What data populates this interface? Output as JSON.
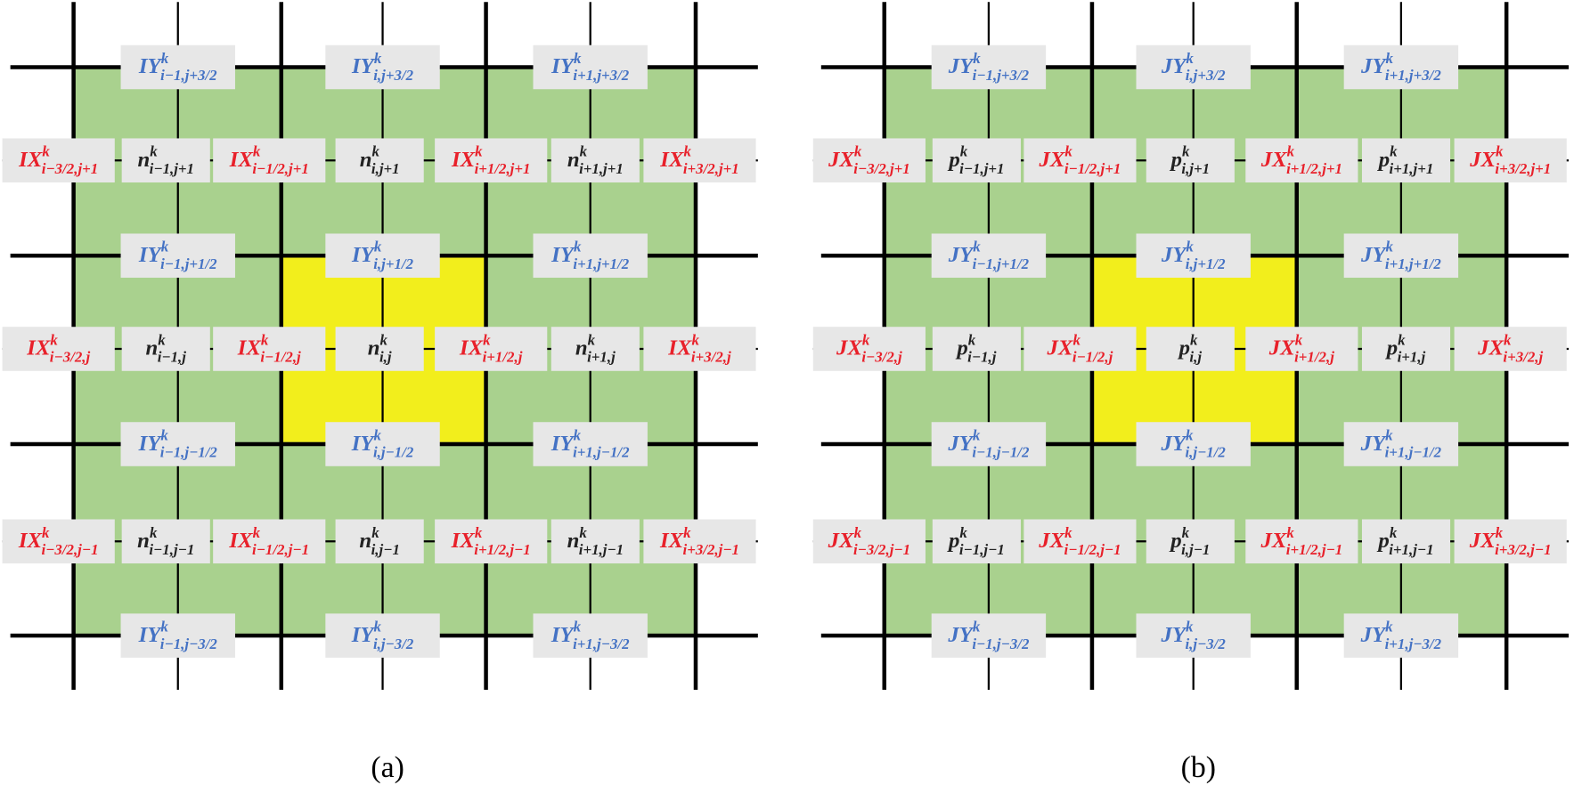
{
  "panels": [
    {
      "caption": "(a)",
      "rows": [
        [
          {
            "base": "IY",
            "sup": "k",
            "sub": "i−1,j+3/2",
            "color": "#4472c4"
          },
          {
            "base": "IY",
            "sup": "k",
            "sub": "i,j+3/2",
            "color": "#4472c4"
          },
          {
            "base": "IY",
            "sup": "k",
            "sub": "i+1,j+3/2",
            "color": "#4472c4"
          }
        ],
        [
          {
            "base": "IX",
            "sup": "k",
            "sub": "i−3/2,j+1",
            "color": "#e8202a"
          },
          {
            "base": "n",
            "sup": "k",
            "sub": "i−1,j+1",
            "color": "#222222"
          },
          {
            "base": "IX",
            "sup": "k",
            "sub": "i−1/2,j+1",
            "color": "#e8202a"
          },
          {
            "base": "n",
            "sup": "k",
            "sub": "i,j+1",
            "color": "#222222"
          },
          {
            "base": "IX",
            "sup": "k",
            "sub": "i+1/2,j+1",
            "color": "#e8202a"
          },
          {
            "base": "n",
            "sup": "k",
            "sub": "i+1,j+1",
            "color": "#222222"
          },
          {
            "base": "IX",
            "sup": "k",
            "sub": "i+3/2,j+1",
            "color": "#e8202a"
          }
        ],
        [
          {
            "base": "IY",
            "sup": "k",
            "sub": "i−1,j+1/2",
            "color": "#4472c4"
          },
          {
            "base": "IY",
            "sup": "k",
            "sub": "i,j+1/2",
            "color": "#4472c4"
          },
          {
            "base": "IY",
            "sup": "k",
            "sub": "i+1,j+1/2",
            "color": "#4472c4"
          }
        ],
        [
          {
            "base": "IX",
            "sup": "k",
            "sub": "i−3/2,j",
            "color": "#e8202a"
          },
          {
            "base": "n",
            "sup": "k",
            "sub": "i−1,j",
            "color": "#222222"
          },
          {
            "base": "IX",
            "sup": "k",
            "sub": "i−1/2,j",
            "color": "#e8202a"
          },
          {
            "base": "n",
            "sup": "k",
            "sub": "i,j",
            "color": "#222222"
          },
          {
            "base": "IX",
            "sup": "k",
            "sub": "i+1/2,j",
            "color": "#e8202a"
          },
          {
            "base": "n",
            "sup": "k",
            "sub": "i+1,j",
            "color": "#222222"
          },
          {
            "base": "IX",
            "sup": "k",
            "sub": "i+3/2,j",
            "color": "#e8202a"
          }
        ],
        [
          {
            "base": "IY",
            "sup": "k",
            "sub": "i−1,j−1/2",
            "color": "#4472c4"
          },
          {
            "base": "IY",
            "sup": "k",
            "sub": "i,j−1/2",
            "color": "#4472c4"
          },
          {
            "base": "IY",
            "sup": "k",
            "sub": "i+1,j−1/2",
            "color": "#4472c4"
          }
        ],
        [
          {
            "base": "IX",
            "sup": "k",
            "sub": "i−3/2,j−1",
            "color": "#e8202a"
          },
          {
            "base": "n",
            "sup": "k",
            "sub": "i−1,j−1",
            "color": "#222222"
          },
          {
            "base": "IX",
            "sup": "k",
            "sub": "i−1/2,j−1",
            "color": "#e8202a"
          },
          {
            "base": "n",
            "sup": "k",
            "sub": "i,j−1",
            "color": "#222222"
          },
          {
            "base": "IX",
            "sup": "k",
            "sub": "i+1/2,j−1",
            "color": "#e8202a"
          },
          {
            "base": "n",
            "sup": "k",
            "sub": "i+1,j−1",
            "color": "#222222"
          },
          {
            "base": "IX",
            "sup": "k",
            "sub": "i+3/2,j−1",
            "color": "#e8202a"
          }
        ],
        [
          {
            "base": "IY",
            "sup": "k",
            "sub": "i−1,j−3/2",
            "color": "#4472c4"
          },
          {
            "base": "IY",
            "sup": "k",
            "sub": "i,j−3/2",
            "color": "#4472c4"
          },
          {
            "base": "IY",
            "sup": "k",
            "sub": "i+1,j−3/2",
            "color": "#4472c4"
          }
        ]
      ]
    },
    {
      "caption": "(b)",
      "rows": [
        [
          {
            "base": "JY",
            "sup": "k",
            "sub": "i−1,j+3/2",
            "color": "#4472c4"
          },
          {
            "base": "JY",
            "sup": "k",
            "sub": "i,j+3/2",
            "color": "#4472c4"
          },
          {
            "base": "JY",
            "sup": "k",
            "sub": "i+1,j+3/2",
            "color": "#4472c4"
          }
        ],
        [
          {
            "base": "JX",
            "sup": "k",
            "sub": "i−3/2,j+1",
            "color": "#e8202a"
          },
          {
            "base": "p",
            "sup": "k",
            "sub": "i−1,j+1",
            "color": "#222222"
          },
          {
            "base": "JX",
            "sup": "k",
            "sub": "i−1/2,j+1",
            "color": "#e8202a"
          },
          {
            "base": "p",
            "sup": "k",
            "sub": "i,j+1",
            "color": "#222222"
          },
          {
            "base": "JX",
            "sup": "k",
            "sub": "i+1/2,j+1",
            "color": "#e8202a"
          },
          {
            "base": "p",
            "sup": "k",
            "sub": "i+1,j+1",
            "color": "#222222"
          },
          {
            "base": "JX",
            "sup": "k",
            "sub": "i+3/2,j+1",
            "color": "#e8202a"
          }
        ],
        [
          {
            "base": "JY",
            "sup": "k",
            "sub": "i−1,j+1/2",
            "color": "#4472c4"
          },
          {
            "base": "JY",
            "sup": "k",
            "sub": "i,j+1/2",
            "color": "#4472c4"
          },
          {
            "base": "JY",
            "sup": "k",
            "sub": "i+1,j+1/2",
            "color": "#4472c4"
          }
        ],
        [
          {
            "base": "JX",
            "sup": "k",
            "sub": "i−3/2,j",
            "color": "#e8202a"
          },
          {
            "base": "p",
            "sup": "k",
            "sub": "i−1,j",
            "color": "#222222"
          },
          {
            "base": "JX",
            "sup": "k",
            "sub": "i−1/2,j",
            "color": "#e8202a"
          },
          {
            "base": "p",
            "sup": "k",
            "sub": "i,j",
            "color": "#222222"
          },
          {
            "base": "JX",
            "sup": "k",
            "sub": "i+1/2,j",
            "color": "#e8202a"
          },
          {
            "base": "p",
            "sup": "k",
            "sub": "i+1,j",
            "color": "#222222"
          },
          {
            "base": "JX",
            "sup": "k",
            "sub": "i+3/2,j",
            "color": "#e8202a"
          }
        ],
        [
          {
            "base": "JY",
            "sup": "k",
            "sub": "i−1,j−1/2",
            "color": "#4472c4"
          },
          {
            "base": "JY",
            "sup": "k",
            "sub": "i,j−1/2",
            "color": "#4472c4"
          },
          {
            "base": "JY",
            "sup": "k",
            "sub": "i+1,j−1/2",
            "color": "#4472c4"
          }
        ],
        [
          {
            "base": "JX",
            "sup": "k",
            "sub": "i−3/2,j−1",
            "color": "#e8202a"
          },
          {
            "base": "p",
            "sup": "k",
            "sub": "i−1,j−1",
            "color": "#222222"
          },
          {
            "base": "JX",
            "sup": "k",
            "sub": "i−1/2,j−1",
            "color": "#e8202a"
          },
          {
            "base": "p",
            "sup": "k",
            "sub": "i,j−1",
            "color": "#222222"
          },
          {
            "base": "JX",
            "sup": "k",
            "sub": "i+1/2,j−1",
            "color": "#e8202a"
          },
          {
            "base": "p",
            "sup": "k",
            "sub": "i+1,j−1",
            "color": "#222222"
          },
          {
            "base": "JX",
            "sup": "k",
            "sub": "i+3/2,j−1",
            "color": "#e8202a"
          }
        ],
        [
          {
            "base": "JY",
            "sup": "k",
            "sub": "i−1,j−3/2",
            "color": "#4472c4"
          },
          {
            "base": "JY",
            "sup": "k",
            "sub": "i,j−3/2",
            "color": "#4472c4"
          },
          {
            "base": "JY",
            "sup": "k",
            "sub": "i+1,j−3/2",
            "color": "#4472c4"
          }
        ]
      ]
    }
  ]
}
